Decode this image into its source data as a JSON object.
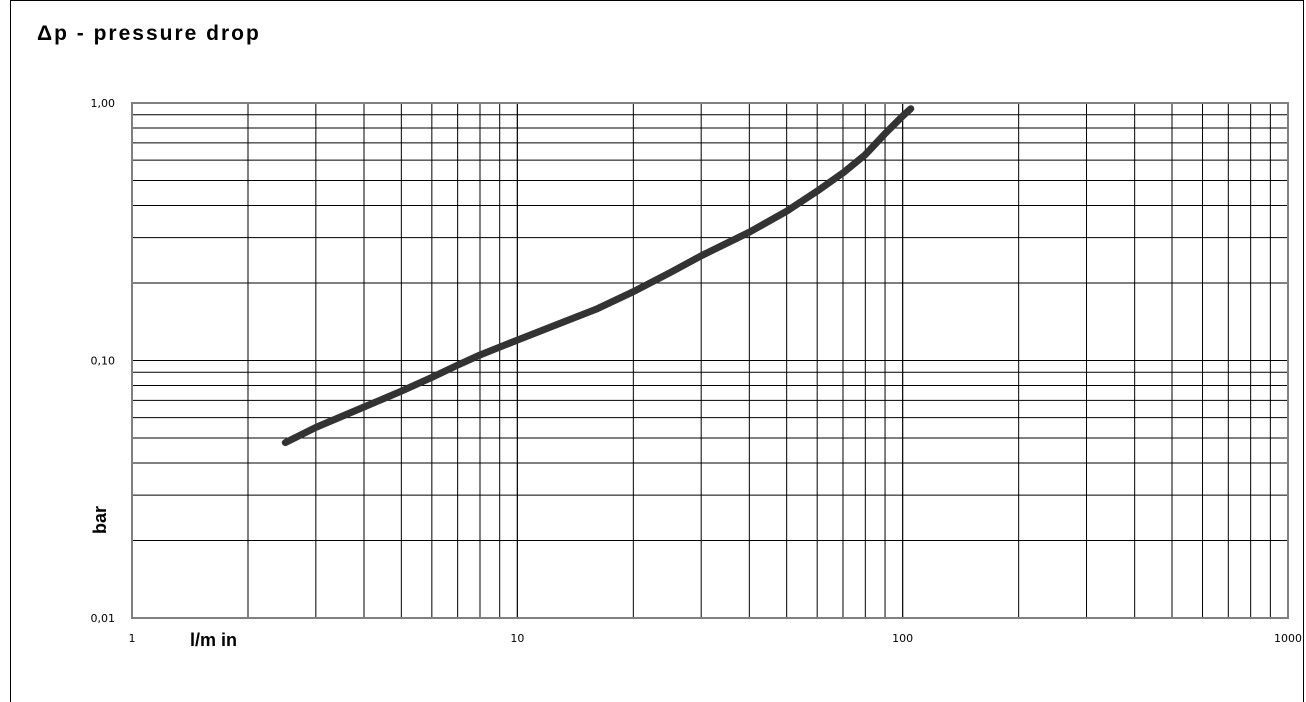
{
  "chart_data": {
    "type": "line",
    "title": "Δp - pressure drop",
    "xlabel": "l/m in",
    "ylabel": "bar",
    "x_scale": "log",
    "y_scale": "log",
    "xlim": [
      1,
      1000
    ],
    "ylim": [
      0.01,
      1.0
    ],
    "x_ticks": [
      "1",
      "10",
      "100",
      "1000"
    ],
    "y_ticks": [
      "0,01",
      "0,10",
      "1,00"
    ],
    "grid": true,
    "series": [
      {
        "color": "#333333",
        "x": [
          2.5,
          3,
          4,
          5,
          6,
          7,
          8,
          10,
          13,
          16,
          20,
          25,
          30,
          40,
          50,
          60,
          70,
          80,
          90,
          100,
          105
        ],
        "y": [
          0.048,
          0.055,
          0.066,
          0.076,
          0.086,
          0.096,
          0.105,
          0.12,
          0.14,
          0.158,
          0.185,
          0.22,
          0.255,
          0.315,
          0.38,
          0.455,
          0.535,
          0.63,
          0.76,
          0.89,
          0.95
        ]
      }
    ]
  }
}
